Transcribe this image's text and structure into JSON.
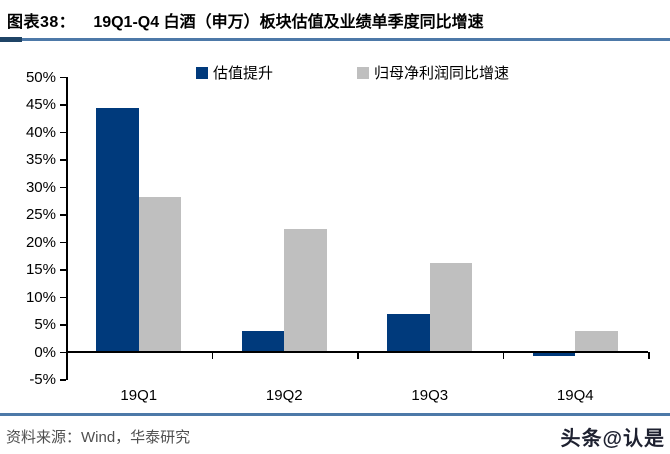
{
  "header": {
    "figure_label": "图表38：",
    "title": "19Q1-Q4 白酒（申万）板块估值及业绩单季度同比增速"
  },
  "legend": {
    "items": [
      {
        "label": "估值提升",
        "color": "#003a7c"
      },
      {
        "label": "归母净利润同比增速",
        "color": "#bfbfbf"
      }
    ]
  },
  "chart_data": {
    "type": "bar",
    "title": "19Q1-Q4 白酒（申万）板块估值及业绩单季度同比增速",
    "categories": [
      "19Q1",
      "19Q2",
      "19Q3",
      "19Q4"
    ],
    "series": [
      {
        "name": "估值提升",
        "color": "#003a7c",
        "values": [
          44.4,
          3.8,
          6.9,
          -0.6
        ]
      },
      {
        "name": "归母净利润同比增速",
        "color": "#bfbfbf",
        "values": [
          28.2,
          22.4,
          16.2,
          3.9
        ]
      }
    ],
    "xlabel": "",
    "ylabel": "",
    "ylim": [
      -5,
      50
    ],
    "ytick_step": 5,
    "ytick_labels": [
      "50%",
      "45%",
      "40%",
      "35%",
      "30%",
      "25%",
      "20%",
      "15%",
      "10%",
      "5%",
      "0%",
      "-5%"
    ],
    "grid": false,
    "legend_position": "top"
  },
  "footer": {
    "source": "资料来源：Wind，华泰研究",
    "watermark": "头条@认是"
  },
  "colors": {
    "bar_blue": "#003a7c",
    "bar_gray": "#bfbfbf",
    "rule_blue": "#4d79a8",
    "rule_cap": "#1f4466",
    "axis_black": "#000000",
    "source_text": "#4f4f4f",
    "watermark_text": "#1e2130"
  }
}
